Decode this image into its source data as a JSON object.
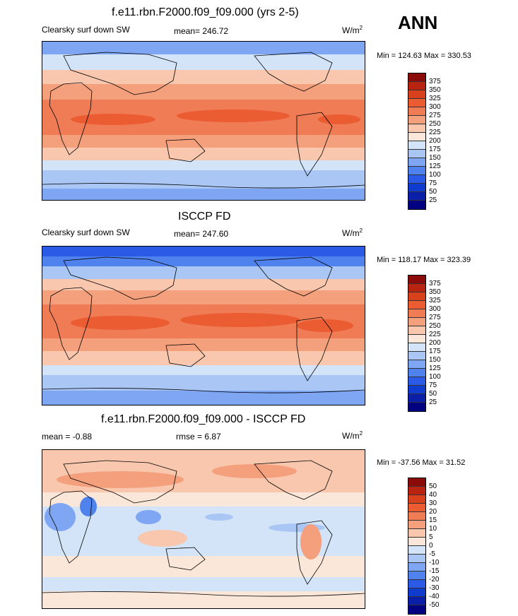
{
  "season": "ANN",
  "colors": {
    "abs": [
      "#000080",
      "#0a1ea8",
      "#0f3ccf",
      "#2a5ae6",
      "#5082ee",
      "#7ea6f2",
      "#a9c6f5",
      "#d4e4f8",
      "#fbe7d9",
      "#f8c7ad",
      "#f4a07d",
      "#f07c55",
      "#eb5c33",
      "#d9401c",
      "#b92411",
      "#8b0a0a"
    ],
    "diff": [
      "#000080",
      "#0a1ea8",
      "#0f3ccf",
      "#2a5ae6",
      "#5082ee",
      "#7ea6f2",
      "#a9c6f5",
      "#d4e4f8",
      "#fbe7d9",
      "#f8c7ad",
      "#f4a07d",
      "#f07c55",
      "#eb5c33",
      "#d9401c",
      "#b92411",
      "#8b0a0a"
    ]
  },
  "panels": [
    {
      "title": "f.e11.rbn.F2000.f09_f09.000 (yrs 2-5)",
      "left_label": "Clearsky surf down SW",
      "center_label": "mean= 246.72",
      "units_label": "W/m",
      "units_sup": "2",
      "minmax": "Min = 124.63 Max = 330.53",
      "cbar_ticks": [
        "375",
        "350",
        "325",
        "300",
        "275",
        "250",
        "225",
        "200",
        "175",
        "150",
        "125",
        "100",
        "75",
        "50",
        "25"
      ]
    },
    {
      "title": "ISCCP FD",
      "left_label": "Clearsky surf down SW",
      "center_label": "mean= 247.60",
      "units_label": "W/m",
      "units_sup": "2",
      "minmax": "Min = 118.17 Max = 323.39",
      "cbar_ticks": [
        "375",
        "350",
        "325",
        "300",
        "275",
        "250",
        "225",
        "200",
        "175",
        "150",
        "125",
        "100",
        "75",
        "50",
        "25"
      ]
    },
    {
      "title": "f.e11.rbn.F2000.f09_f09.000 - ISCCP FD",
      "left_label": "mean =  -0.88",
      "center_label": "rmse =    6.87",
      "units_label": "W/m",
      "units_sup": "2",
      "minmax": "Min = -37.56 Max =  31.52",
      "cbar_ticks": [
        "50",
        "40",
        "30",
        "20",
        "15",
        "10",
        "5",
        "0",
        "-5",
        "-10",
        "-15",
        "-20",
        "-30",
        "-40",
        "-50"
      ]
    }
  ]
}
